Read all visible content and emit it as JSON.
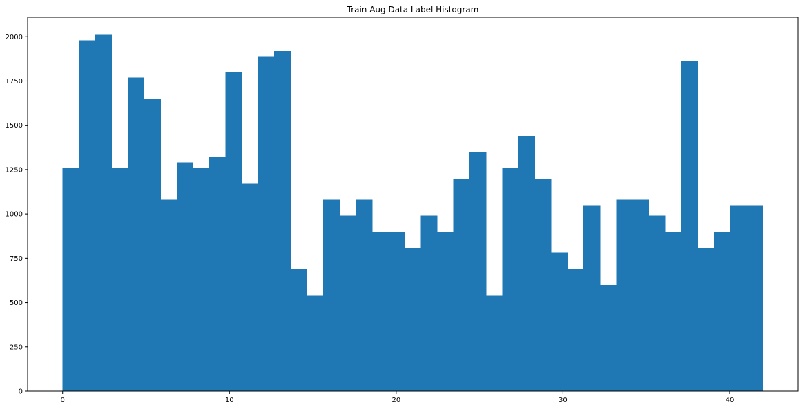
{
  "chart_data": {
    "type": "bar",
    "title": "Train Aug Data Label Histogram",
    "xlabel": "",
    "ylabel": "",
    "bin_edges_start": 0,
    "bin_width": 0.976,
    "values": [
      1260,
      1980,
      2010,
      1260,
      1770,
      1650,
      1080,
      1290,
      1260,
      1320,
      1800,
      1170,
      1890,
      1920,
      690,
      540,
      1080,
      990,
      1080,
      900,
      900,
      810,
      990,
      900,
      1200,
      1350,
      540,
      1260,
      1440,
      1200,
      780,
      690,
      1050,
      600,
      1080,
      1080,
      990,
      900,
      1860,
      810,
      900,
      1050,
      1050
    ],
    "xlim": [
      -2.1,
      44.1
    ],
    "ylim": [
      0,
      2110
    ],
    "x_ticks": [
      0,
      10,
      20,
      30,
      40
    ],
    "y_ticks": [
      0,
      250,
      500,
      750,
      1000,
      1250,
      1500,
      1750,
      2000
    ],
    "bar_color": "#1f77b4",
    "grid": false,
    "legend": "none"
  }
}
